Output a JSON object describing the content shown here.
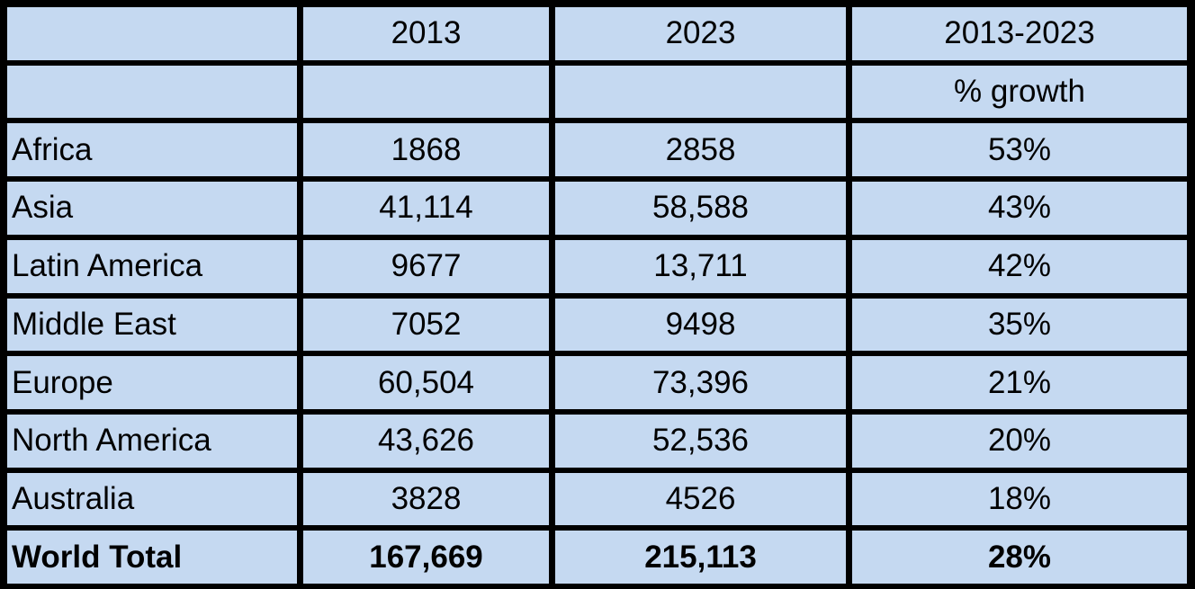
{
  "header": {
    "columns": [
      "2013",
      "2023",
      "2013-2023"
    ],
    "subheader": "% growth"
  },
  "table": {
    "rows": [
      [
        "Africa",
        "1868",
        "2858",
        "53%"
      ],
      [
        "Asia",
        "41,114",
        "58,588",
        "43%"
      ],
      [
        "Latin America",
        "9677",
        "13,711",
        "42%"
      ],
      [
        "Middle East",
        "7052",
        "9498",
        "35%"
      ],
      [
        "Europe",
        "60,504",
        "73,396",
        "21%"
      ],
      [
        "North America",
        "43,626",
        "52,536",
        "20%"
      ],
      [
        "Australia",
        "3828",
        "4526",
        "18%"
      ]
    ],
    "total": [
      "World Total",
      "167,669",
      "215,113",
      "28%"
    ]
  }
}
